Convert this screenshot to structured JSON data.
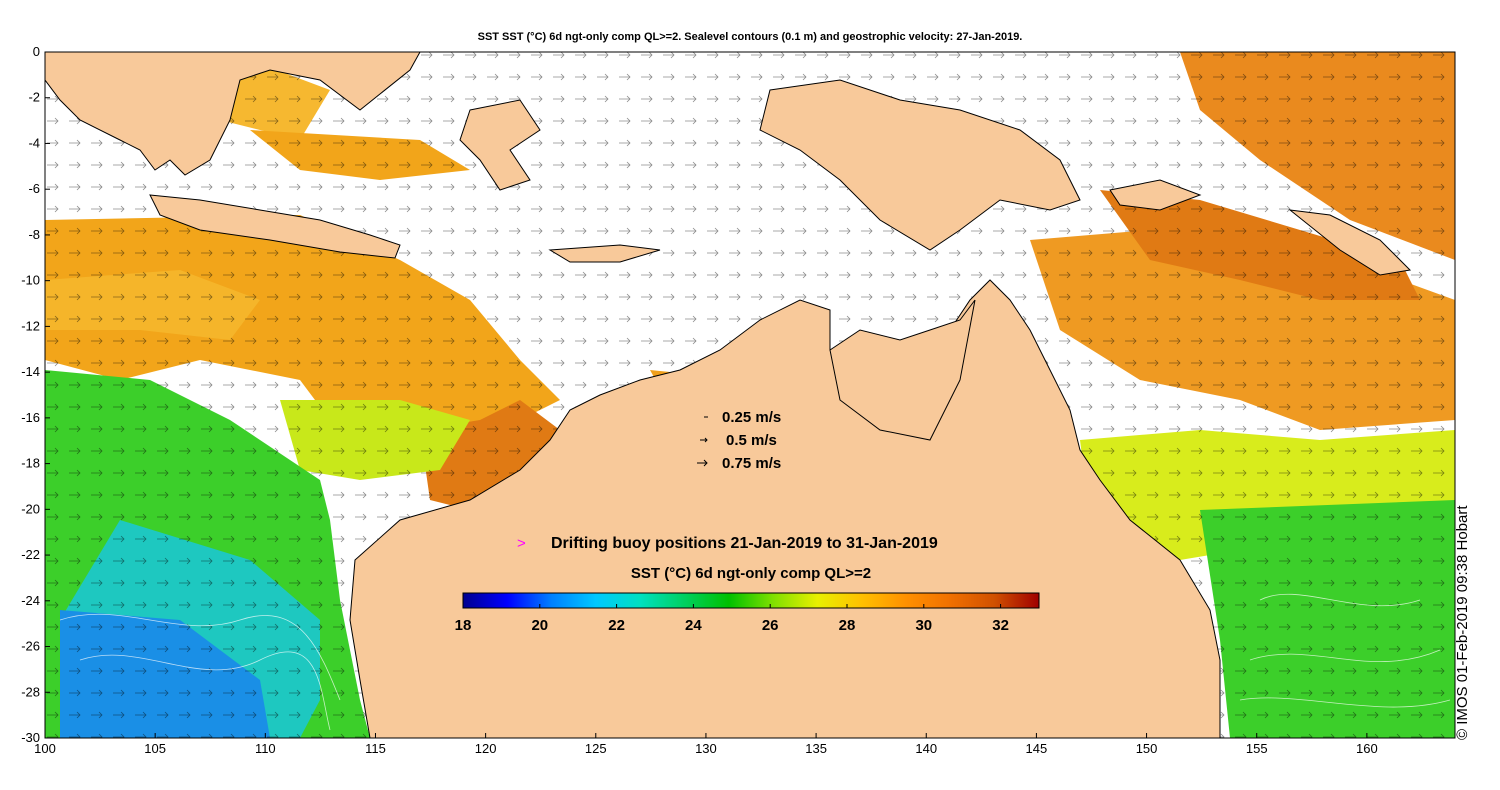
{
  "title": "SST SST (°C) 6d ngt-only comp QL>=2. Sealevel contours (0.1 m) and geostrophic velocity: 27-Jan-2019.",
  "credit": "© IMOS 01-Feb-2019 09:38 Hobart",
  "axes": {
    "x_ticks": [
      "100",
      "105",
      "110",
      "115",
      "120",
      "125",
      "130",
      "135",
      "140",
      "145",
      "150",
      "155",
      "160"
    ],
    "y_ticks": [
      "0",
      "-2",
      "-4",
      "-6",
      "-8",
      "-10",
      "-12",
      "-14",
      "-16",
      "-18",
      "-20",
      "-22",
      "-24",
      "-26",
      "-28",
      "-30"
    ],
    "lon_range": [
      100,
      164
    ],
    "lat_range": [
      -30,
      0
    ]
  },
  "velocity_legend": [
    {
      "label": "0.25 m/s"
    },
    {
      "label": "0.5 m/s"
    },
    {
      "label": "0.75 m/s"
    }
  ],
  "buoy_legend": {
    "symbol": ">",
    "label": "Drifting buoy positions 21-Jan-2019 to 31-Jan-2019",
    "color": "#ff00ff"
  },
  "colorbar": {
    "title": "SST (°C) 6d ngt-only comp QL>=2",
    "range": [
      18,
      33
    ],
    "tick_labels": [
      "18",
      "20",
      "22",
      "24",
      "26",
      "28",
      "30",
      "32"
    ],
    "colors": [
      "#00008f",
      "#0000ff",
      "#0080ff",
      "#00c8ff",
      "#00e0c0",
      "#00d060",
      "#00c000",
      "#80e000",
      "#e8f000",
      "#ffc000",
      "#ff9000",
      "#f07000",
      "#d05000",
      "#a00000"
    ]
  },
  "colors": {
    "land": "#f8c99a",
    "background": "#ffffff",
    "warm": "#f2a51a",
    "hot": "#e07a14",
    "green": "#3ccf2a",
    "cool": "#1ec8c0",
    "cold": "#1a8fe6"
  }
}
